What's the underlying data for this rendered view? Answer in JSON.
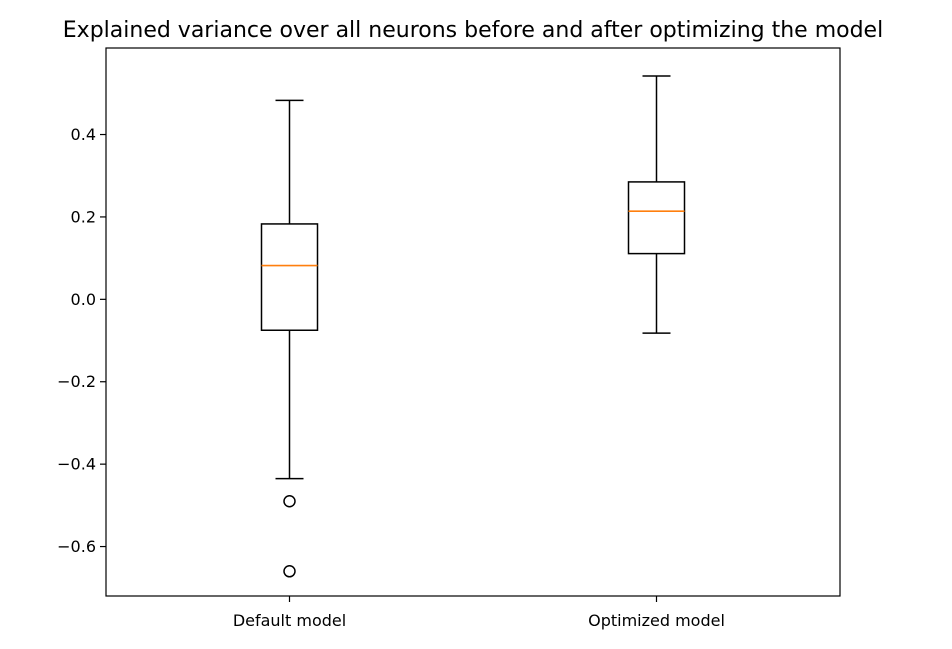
{
  "chart_data": {
    "type": "boxplot",
    "title": "Explained variance over all neurons before and after optimizing the model",
    "xlabel": "",
    "ylabel": "",
    "categories": [
      "Default model",
      "Optimized model"
    ],
    "boxes": [
      {
        "category": "Default model",
        "whisker_low": -0.435,
        "q1": -0.075,
        "median": 0.082,
        "q3": 0.183,
        "whisker_high": 0.483,
        "outliers": [
          -0.49,
          -0.66
        ]
      },
      {
        "category": "Optimized model",
        "whisker_low": -0.082,
        "q1": 0.111,
        "median": 0.214,
        "q3": 0.285,
        "whisker_high": 0.542,
        "outliers": []
      }
    ],
    "ylim": [
      -0.72,
      0.61
    ],
    "yticks": [
      0.4,
      0.2,
      0.0,
      -0.2,
      -0.4,
      -0.6
    ],
    "ytick_labels": [
      "0.4",
      "0.2",
      "0.0",
      "−0.2",
      "−0.4",
      "−0.6"
    ],
    "grid": false,
    "colors": {
      "box": "#000000",
      "median": "#ff7f0e"
    }
  }
}
